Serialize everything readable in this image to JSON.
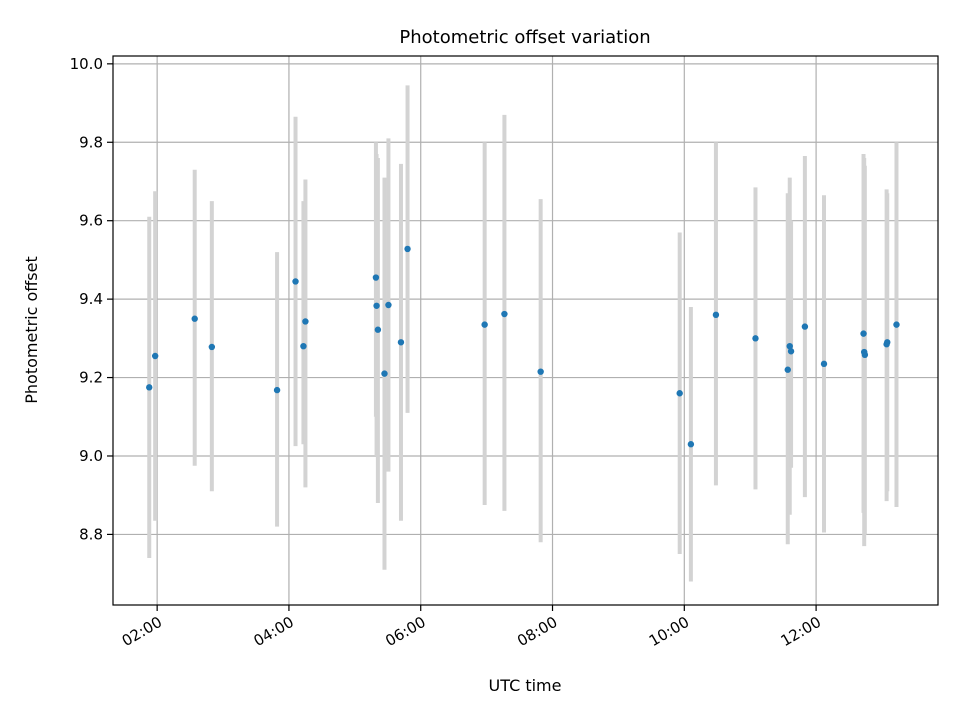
{
  "chart_data": {
    "type": "scatter",
    "title": "Photometric offset variation",
    "xlabel": "UTC time",
    "ylabel": "Photometric offset",
    "x_unit": "hours",
    "xlim": [
      1.33,
      13.85
    ],
    "ylim": [
      8.62,
      10.02
    ],
    "xticks": [
      {
        "value": 2,
        "label": "02:00"
      },
      {
        "value": 4,
        "label": "04:00"
      },
      {
        "value": 6,
        "label": "06:00"
      },
      {
        "value": 8,
        "label": "08:00"
      },
      {
        "value": 10,
        "label": "10:00"
      },
      {
        "value": 12,
        "label": "12:00"
      }
    ],
    "yticks": [
      {
        "value": 8.8,
        "label": "8.8"
      },
      {
        "value": 9.0,
        "label": "9.0"
      },
      {
        "value": 9.2,
        "label": "9.2"
      },
      {
        "value": 9.4,
        "label": "9.4"
      },
      {
        "value": 9.6,
        "label": "9.6"
      },
      {
        "value": 9.8,
        "label": "9.8"
      },
      {
        "value": 10.0,
        "label": "10.0"
      }
    ],
    "grid": true,
    "point_color": "#1f77b4",
    "errorbar_color": "#d3d3d3",
    "points": [
      {
        "x": 1.88,
        "y": 9.175,
        "lo": 8.74,
        "hi": 9.61
      },
      {
        "x": 1.97,
        "y": 9.255,
        "lo": 8.835,
        "hi": 9.675
      },
      {
        "x": 2.57,
        "y": 9.35,
        "lo": 8.975,
        "hi": 9.73
      },
      {
        "x": 2.83,
        "y": 9.278,
        "lo": 8.91,
        "hi": 9.65
      },
      {
        "x": 3.82,
        "y": 9.168,
        "lo": 8.82,
        "hi": 9.52
      },
      {
        "x": 4.1,
        "y": 9.445,
        "lo": 9.025,
        "hi": 9.865
      },
      {
        "x": 4.22,
        "y": 9.28,
        "lo": 9.03,
        "hi": 9.65
      },
      {
        "x": 4.25,
        "y": 9.343,
        "lo": 8.92,
        "hi": 9.705
      },
      {
        "x": 5.32,
        "y": 9.455,
        "lo": 9.1,
        "hi": 9.8
      },
      {
        "x": 5.33,
        "y": 9.383,
        "lo": 9.0,
        "hi": 9.77
      },
      {
        "x": 5.35,
        "y": 9.322,
        "lo": 8.88,
        "hi": 9.76
      },
      {
        "x": 5.45,
        "y": 9.21,
        "lo": 8.71,
        "hi": 9.71
      },
      {
        "x": 5.51,
        "y": 9.385,
        "lo": 8.96,
        "hi": 9.81
      },
      {
        "x": 5.7,
        "y": 9.29,
        "lo": 8.835,
        "hi": 9.745
      },
      {
        "x": 5.8,
        "y": 9.528,
        "lo": 9.11,
        "hi": 9.945
      },
      {
        "x": 6.97,
        "y": 9.335,
        "lo": 8.875,
        "hi": 9.8
      },
      {
        "x": 7.27,
        "y": 9.362,
        "lo": 8.86,
        "hi": 9.87
      },
      {
        "x": 7.82,
        "y": 9.215,
        "lo": 8.78,
        "hi": 9.655
      },
      {
        "x": 9.93,
        "y": 9.16,
        "lo": 8.75,
        "hi": 9.57
      },
      {
        "x": 10.1,
        "y": 9.03,
        "lo": 8.68,
        "hi": 9.38
      },
      {
        "x": 10.48,
        "y": 9.36,
        "lo": 8.925,
        "hi": 9.8
      },
      {
        "x": 11.08,
        "y": 9.3,
        "lo": 8.915,
        "hi": 9.685
      },
      {
        "x": 11.57,
        "y": 9.22,
        "lo": 8.775,
        "hi": 9.67
      },
      {
        "x": 11.6,
        "y": 9.28,
        "lo": 8.85,
        "hi": 9.71
      },
      {
        "x": 11.62,
        "y": 9.267,
        "lo": 8.97,
        "hi": 9.6
      },
      {
        "x": 11.83,
        "y": 9.33,
        "lo": 8.895,
        "hi": 9.765
      },
      {
        "x": 12.12,
        "y": 9.235,
        "lo": 8.805,
        "hi": 9.665
      },
      {
        "x": 12.72,
        "y": 9.312,
        "lo": 8.855,
        "hi": 9.77
      },
      {
        "x": 12.73,
        "y": 9.265,
        "lo": 8.77,
        "hi": 9.76
      },
      {
        "x": 12.74,
        "y": 9.258,
        "lo": 8.8,
        "hi": 9.74
      },
      {
        "x": 13.07,
        "y": 9.285,
        "lo": 8.885,
        "hi": 9.68
      },
      {
        "x": 13.08,
        "y": 9.29,
        "lo": 8.91,
        "hi": 9.67
      },
      {
        "x": 13.22,
        "y": 9.335,
        "lo": 8.87,
        "hi": 9.8
      }
    ]
  }
}
